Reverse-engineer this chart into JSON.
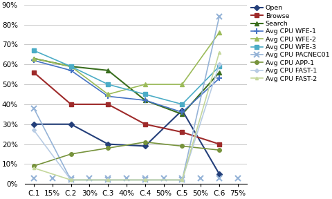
{
  "x_labels": [
    "C.1",
    "15%",
    "C.2",
    "30%",
    "C.3",
    "40%",
    "C.4",
    "50%",
    "C.5",
    "50%",
    "C.6",
    "75%"
  ],
  "data_x_positions": [
    0,
    2,
    4,
    6,
    8,
    10
  ],
  "series": [
    {
      "name": "Open",
      "color": "#243f7a",
      "marker": "D",
      "markersize": 4,
      "linewidth": 1.5,
      "values": [
        0.3,
        0.3,
        0.2,
        0.19,
        0.37,
        0.05
      ]
    },
    {
      "name": "Browse",
      "color": "#9e2a2a",
      "marker": "s",
      "markersize": 4,
      "linewidth": 1.5,
      "values": [
        0.56,
        0.4,
        0.4,
        0.3,
        0.26,
        0.2
      ]
    },
    {
      "name": "Search",
      "color": "#3a6e1f",
      "marker": "^",
      "markersize": 5,
      "linewidth": 1.5,
      "values": [
        0.63,
        0.59,
        0.57,
        0.42,
        0.35,
        0.56
      ]
    },
    {
      "name": "Avg CPU WFE-1",
      "color": "#4472c4",
      "marker": "+",
      "markersize": 6,
      "linewidth": 1.2,
      "markeredgewidth": 1.5,
      "values": [
        0.62,
        0.57,
        0.44,
        0.42,
        0.36,
        0.53
      ]
    },
    {
      "name": "Avg CPU WFE-2",
      "color": "#9bbb59",
      "marker": "^",
      "markersize": 4,
      "linewidth": 1.2,
      "markeredgewidth": 1.0,
      "values": [
        0.63,
        0.59,
        0.45,
        0.5,
        0.5,
        0.76
      ]
    },
    {
      "name": "Avg CPU WFE-3",
      "color": "#4bacc6",
      "marker": "s",
      "markersize": 4,
      "linewidth": 1.2,
      "markeredgewidth": 1.0,
      "values": [
        0.67,
        0.59,
        0.5,
        0.45,
        0.4,
        0.59
      ]
    },
    {
      "name": "Avg CPU PACNEC01",
      "color": "#95b3d7",
      "marker": "x",
      "markersize": 6,
      "linewidth": 1.2,
      "markeredgewidth": 1.5,
      "values": [
        0.38,
        0.02,
        0.02,
        0.02,
        0.02,
        0.84
      ],
      "all_x_markers": true,
      "all_x_values": [
        0.03,
        0.03,
        0.03,
        0.03,
        0.03,
        0.03,
        0.03,
        0.03,
        0.03,
        0.03,
        0.03,
        0.03
      ]
    },
    {
      "name": "Avg CPU APP-1",
      "color": "#77933c",
      "marker": "o",
      "markersize": 4,
      "linewidth": 1.2,
      "markeredgewidth": 1.0,
      "values": [
        0.09,
        0.15,
        0.18,
        0.21,
        0.19,
        0.17
      ]
    },
    {
      "name": "Avg CPU FAST-1",
      "color": "#b8cce4",
      "marker": "D",
      "markersize": 3,
      "linewidth": 1.2,
      "markeredgewidth": 1.0,
      "values": [
        0.27,
        0.02,
        0.02,
        0.02,
        0.02,
        0.6
      ]
    },
    {
      "name": "Avg CPU FAST-2",
      "color": "#c4d79b",
      "marker": "^",
      "markersize": 3,
      "linewidth": 1.2,
      "markeredgewidth": 1.0,
      "values": [
        0.08,
        0.02,
        0.02,
        0.02,
        0.02,
        0.66
      ]
    }
  ],
  "ylim": [
    0.0,
    0.9
  ],
  "yticks": [
    0.0,
    0.1,
    0.2,
    0.3,
    0.4,
    0.5,
    0.6,
    0.7,
    0.8,
    0.9
  ],
  "background_color": "#ffffff",
  "grid_color": "#bfbfbf",
  "legend_fontsize": 6.8,
  "tick_fontsize": 7.5
}
